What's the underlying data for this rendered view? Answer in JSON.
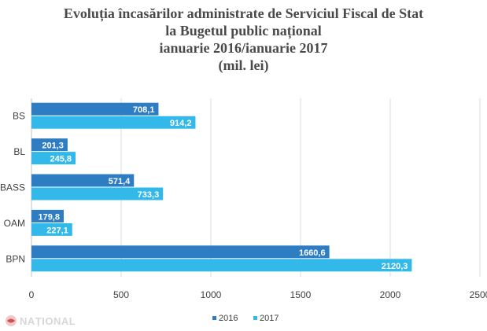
{
  "title_lines": [
    "Evoluția încasărilor administrate de Serviciul Fiscal de Stat",
    "la Bugetul public național",
    "ianuarie 2016/ianuarie 2017",
    "(mil. lei)"
  ],
  "watermark": "NAȚIONAL",
  "colors": {
    "s2016": "#2e7dc3",
    "s2017": "#33b8ea",
    "grid": "#dcdcdc",
    "text": "#404040"
  },
  "chart_data": {
    "type": "bar",
    "orientation": "horizontal",
    "categories": [
      "BS",
      "BL",
      "BASS",
      "OAM",
      "BPN"
    ],
    "series": [
      {
        "name": "2016",
        "values": [
          708.1,
          201.3,
          571.4,
          179.8,
          1660.6
        ],
        "labels": [
          "708,1",
          "201,3",
          "571,4",
          "179,8",
          "1660,6"
        ]
      },
      {
        "name": "2017",
        "values": [
          914.2,
          245.8,
          733.3,
          227.1,
          2120.3
        ],
        "labels": [
          "914,2",
          "245,8",
          "733,3",
          "227,1",
          "2120,3"
        ]
      }
    ],
    "xlim": [
      0,
      2500
    ],
    "xticks": [
      0,
      500,
      1000,
      1500,
      2000,
      2500
    ],
    "xtick_labels": [
      "0",
      "500",
      "1000",
      "1500",
      "2000",
      "2500"
    ],
    "grid": true,
    "legend": "bottom"
  }
}
